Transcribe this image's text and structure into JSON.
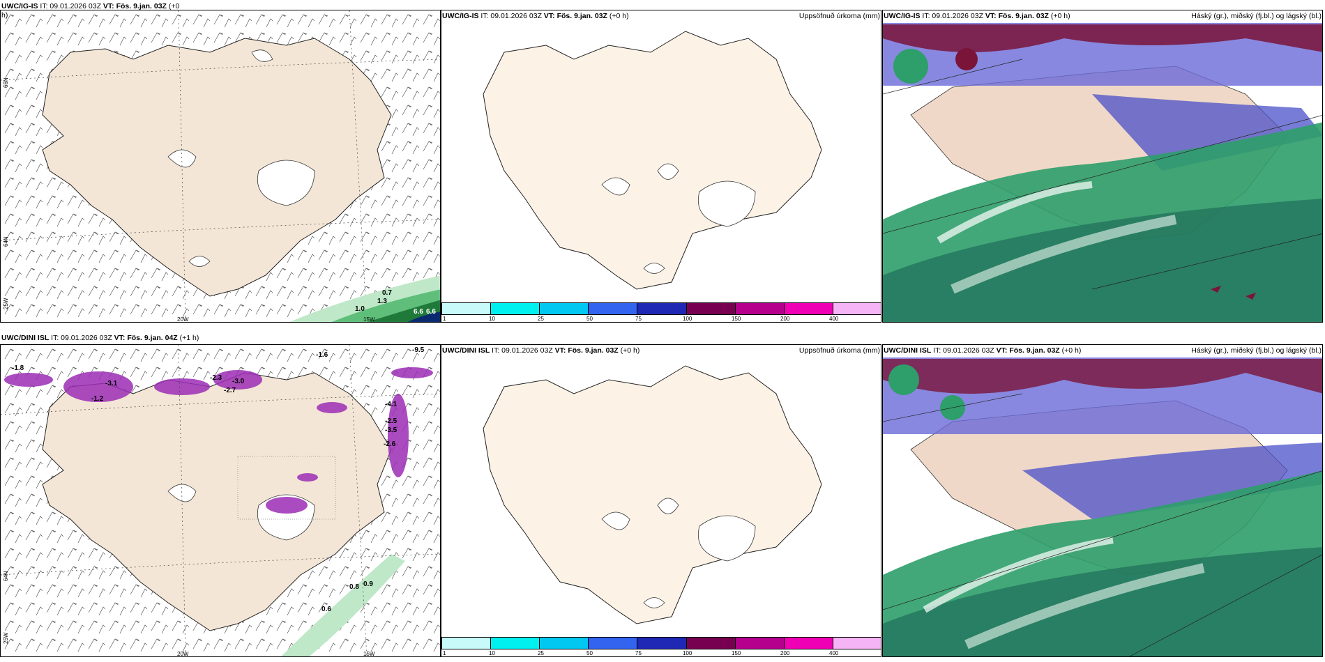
{
  "panels": [
    {
      "model": "UWC/IG-IS",
      "it": "IT: 09.01.2026 03Z",
      "vt": "VT: Fös. 9.jan. 03Z",
      "lead": "(+0",
      "lead2": "h)",
      "right": ""
    },
    {
      "model": "UWC/IG-IS",
      "it": "IT: 09.01.2026 03Z",
      "vt": "VT: Fös. 9.jan. 03Z",
      "lead": "(+0 h)",
      "right": "Uppsöfnuð úrkoma (mm)"
    },
    {
      "model": "UWC/IG-IS",
      "it": "IT: 09.01.2026 03Z",
      "vt": "VT: Fös. 9.jan. 03Z",
      "lead": "(+0 h)",
      "right": "Háský (gr.), miðský (fj.bl.) og lágský (bl.)"
    },
    {
      "model": "UWC/DINI ISL",
      "it": "IT: 09.01.2026 03Z",
      "vt": "VT: Fös. 9.jan. 04Z",
      "lead": "(+1 h)",
      "right": ""
    },
    {
      "model": "UWC/DINI ISL",
      "it": "IT: 09.01.2026 03Z",
      "vt": "VT: Fös. 9.jan. 03Z",
      "lead": "(+0 h)",
      "right": "Uppsöfnuð úrkoma (mm)"
    },
    {
      "model": "UWC/DINI ISL",
      "it": "IT: 09.01.2026 03Z",
      "vt": "VT: Fös. 9.jan. 03Z",
      "lead": "(+0 h)",
      "right": "Háský (gr.), miðský (fj.bl.) og lágský (bl.)"
    }
  ],
  "graticule": {
    "lon_20w": "20W",
    "lon_15w": "15W",
    "lat_66n": "66N",
    "lat_64n": "64N",
    "lon_25w": "25W"
  },
  "colorbar": {
    "ticks": [
      "1",
      "10",
      "25",
      "50",
      "75",
      "100",
      "150",
      "200",
      "400"
    ],
    "colors": [
      "#c8fafa",
      "#00f0f0",
      "#00c8f0",
      "#3264f0",
      "#1e28b4",
      "#780050",
      "#b4008c",
      "#f000b4",
      "#f5b4f5"
    ]
  },
  "temp_labels_top": [
    "0.7",
    "1.0",
    "1.3",
    "6.6",
    "6.6"
  ],
  "temp_labels_bottom": [
    "-1.8",
    "-1.6",
    "-2.3",
    "-3.0",
    "-3.1",
    "-1.2",
    "-2.7",
    "-4.1",
    "-2.5",
    "-2.6",
    "-3.5",
    "-9.5",
    "0.6",
    "0.8",
    "0.9"
  ],
  "colors": {
    "land": "#f3e6d6",
    "land_precip": "#fdf2e6",
    "green": "#2e9e6a",
    "purple": "#9b2db5",
    "navy": "#4a50c8",
    "maroon": "#7a1438"
  }
}
